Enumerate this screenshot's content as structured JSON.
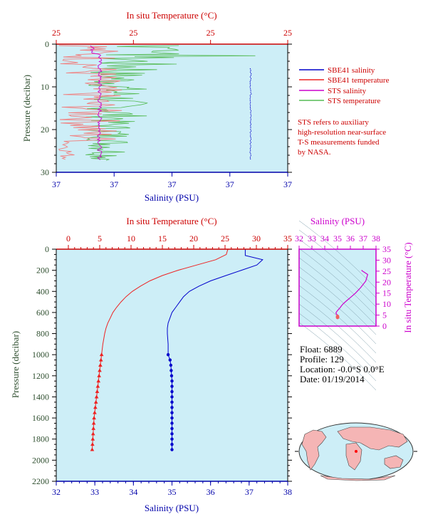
{
  "top_chart": {
    "top_axis_label": "In situ Temperature (°C)",
    "top_ticks": [
      "25",
      "25",
      "25",
      "25"
    ],
    "bottom_axis_label": "Salinity (PSU)",
    "bottom_ticks": [
      "37",
      "37",
      "37",
      "37",
      "37"
    ],
    "y_axis_label": "Pressure (decibar)",
    "y_ticks": [
      "0",
      "10",
      "20",
      "30"
    ],
    "legend": {
      "sbe_sal": "SBE41 salinity",
      "sbe_temp": "SBE41 temperature",
      "sts_sal": "STS salinity",
      "sts_temp": "STS temperature"
    },
    "note_lines": [
      "STS refers to auxiliary",
      "high-resolution near-surface",
      "T-S measurements funded",
      "by NASA."
    ]
  },
  "main_chart": {
    "top_axis_label": "In situ Temperature (°C)",
    "top_ticks": [
      "0",
      "5",
      "10",
      "15",
      "20",
      "25",
      "30",
      "35"
    ],
    "bottom_axis_label": "Salinity (PSU)",
    "bottom_ticks": [
      "32",
      "33",
      "34",
      "35",
      "36",
      "37",
      "38"
    ],
    "y_axis_label": "Pressure (decibar)",
    "y_ticks": [
      "0",
      "200",
      "400",
      "600",
      "800",
      "1000",
      "1200",
      "1400",
      "1600",
      "1800",
      "2000",
      "2200"
    ]
  },
  "ts_chart": {
    "top_axis_label": "Salinity (PSU)",
    "top_ticks": [
      "32",
      "33",
      "34",
      "35",
      "36",
      "37",
      "38"
    ],
    "right_axis_label": "In situ Temperature (°C)",
    "right_ticks": [
      "0",
      "5",
      "10",
      "15",
      "20",
      "25",
      "30",
      "35"
    ]
  },
  "info": {
    "float": "Float:  6889",
    "profile": "Profile:  129",
    "location": "Location:  -0.0°S   0.0°E",
    "date": "Date:  01/19/2014"
  },
  "colors": {
    "plot_bg": "#cdeef7",
    "salinity": "#0000cc",
    "temperature": "#ee2222",
    "sts_salinity": "#cc00cc",
    "sts_temperature": "#55bb55"
  },
  "chart_data": [
    {
      "type": "line",
      "title": "",
      "xlabel": "Salinity (PSU)",
      "ylabel": "Pressure (decibar)",
      "ylim": [
        2200,
        0
      ],
      "temperature_xlim": [
        0,
        35
      ],
      "salinity_xlim": [
        32,
        38
      ],
      "series": [
        {
          "name": "SBE41 temperature",
          "axis": "temperature",
          "pressure": [
            0,
            10,
            50,
            100,
            150,
            200,
            250,
            300,
            350,
            400,
            450,
            500,
            550,
            600,
            650,
            700,
            750,
            800,
            850,
            900,
            1000,
            1050,
            1100,
            1150,
            1200,
            1250,
            1300,
            1350,
            1400,
            1450,
            1500,
            1550,
            1600,
            1650,
            1700,
            1750,
            1800,
            1850,
            1900
          ],
          "values": [
            25.5,
            25.4,
            25.2,
            23.5,
            20.5,
            17.5,
            15.0,
            13.0,
            11.5,
            10.2,
            9.2,
            8.4,
            7.7,
            7.1,
            6.7,
            6.3,
            6.0,
            5.8,
            5.65,
            5.5,
            5.3,
            5.2,
            5.1,
            5.0,
            4.9,
            4.8,
            4.7,
            4.6,
            4.5,
            4.4,
            4.3,
            4.2,
            4.1,
            4.05,
            4.0,
            3.95,
            3.9,
            3.85,
            3.8
          ]
        },
        {
          "name": "SBE41 salinity",
          "axis": "salinity",
          "pressure": [
            0,
            10,
            60,
            100,
            150,
            200,
            250,
            300,
            350,
            400,
            450,
            500,
            550,
            600,
            650,
            700,
            750,
            800,
            900,
            1000,
            1050,
            1100,
            1150,
            1200,
            1250,
            1300,
            1350,
            1400,
            1450,
            1500,
            1550,
            1600,
            1650,
            1700,
            1750,
            1800,
            1850,
            1900
          ],
          "values": [
            36.9,
            36.9,
            36.9,
            37.35,
            37.2,
            36.8,
            36.4,
            36.0,
            35.7,
            35.45,
            35.3,
            35.2,
            35.1,
            35.0,
            34.95,
            34.9,
            34.88,
            34.88,
            34.9,
            34.9,
            34.95,
            34.97,
            34.98,
            34.99,
            35.0,
            35.0,
            35.0,
            35.0,
            35.0,
            35.0,
            35.0,
            35.0,
            35.0,
            35.0,
            35.0,
            35.0,
            35.0,
            35.0
          ]
        }
      ]
    }
  ]
}
